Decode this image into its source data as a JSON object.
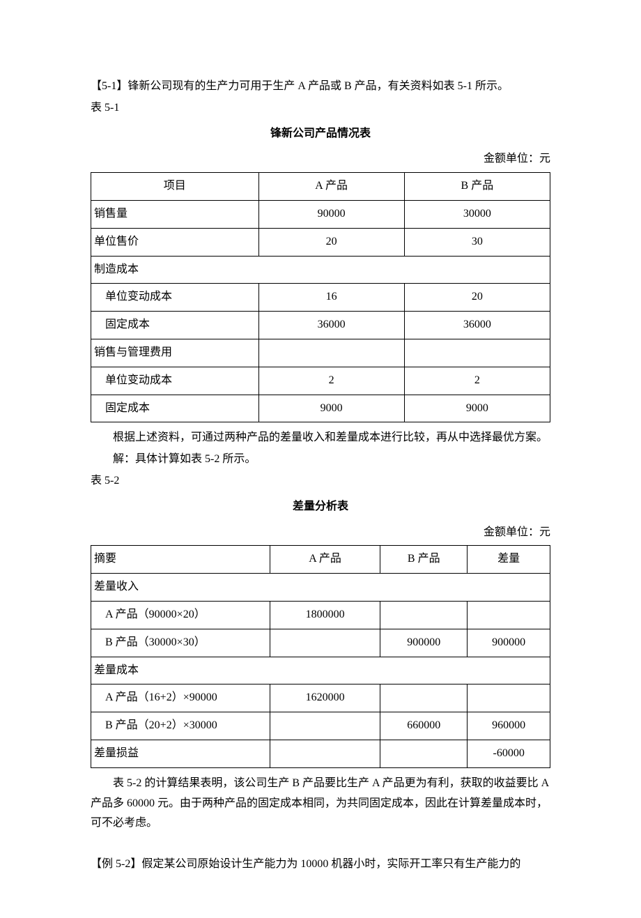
{
  "intro1": "【5-1】锋新公司现有的生产力可用于生产 A 产品或 B 产品，有关资料如表 5-1 所示。",
  "intro2": "表 5-1",
  "table1_title": "锋新公司产品情况表",
  "unit_label": "金额单位：元",
  "table1": {
    "headers": [
      "项目",
      "A 产品",
      "B 产品"
    ],
    "rows": [
      {
        "label": "销售量",
        "a": "90000",
        "b": "30000",
        "indent": false
      },
      {
        "label": "单位售价",
        "a": "20",
        "b": "30",
        "indent": false
      },
      {
        "label": "制造成本",
        "a": "",
        "b": "",
        "indent": false,
        "span": true
      },
      {
        "label": "单位变动成本",
        "a": "16",
        "b": "20",
        "indent": true
      },
      {
        "label": "固定成本",
        "a": "36000",
        "b": "36000",
        "indent": true
      },
      {
        "label": "销售与管理费用",
        "a": "",
        "b": "",
        "indent": false
      },
      {
        "label": "单位变动成本",
        "a": "2",
        "b": "2",
        "indent": true
      },
      {
        "label": "固定成本",
        "a": "9000",
        "b": "9000",
        "indent": true
      }
    ]
  },
  "mid1": "根据上述资料，可通过两种产品的差量收入和差量成本进行比较，再从中选择最优方案。",
  "mid2": "解：具体计算如表 5-2 所示。",
  "mid3": "表 5-2",
  "table2_title": "差量分析表",
  "table2": {
    "headers": [
      "摘要",
      "A 产品",
      "B 产品",
      "差量"
    ],
    "rows": [
      {
        "label": "差量收入",
        "a": "",
        "b": "",
        "d": "",
        "indent": false,
        "span": true
      },
      {
        "label": "A 产品（90000×20）",
        "a": "1800000",
        "b": "",
        "d": "",
        "indent": true
      },
      {
        "label": "B 产品（30000×30）",
        "a": "",
        "b": "900000",
        "d": "900000",
        "indent": true
      },
      {
        "label": "差量成本",
        "a": "",
        "b": "",
        "d": "",
        "indent": false,
        "span": true
      },
      {
        "label": "A 产品（16+2）×90000",
        "a": "1620000",
        "b": "",
        "d": "",
        "indent": true
      },
      {
        "label": "B 产品（20+2）×30000",
        "a": "",
        "b": "660000",
        "d": "960000",
        "indent": true
      },
      {
        "label": "差量损益",
        "a": "",
        "b": "",
        "d": "-60000",
        "indent": false
      }
    ]
  },
  "after1": "表 5-2 的计算结果表明，该公司生产 B 产品要比生产 A 产品更为有利，获取的收益要比 A 产品多 60000 元。由于两种产品的固定成本相同，为共同固定成本，因此在计算差量成本时，可不必考虑。",
  "after2": "【例 5-2】假定某公司原始设计生产能力为 10000 机器小时，实际开工率只有生产能力的"
}
